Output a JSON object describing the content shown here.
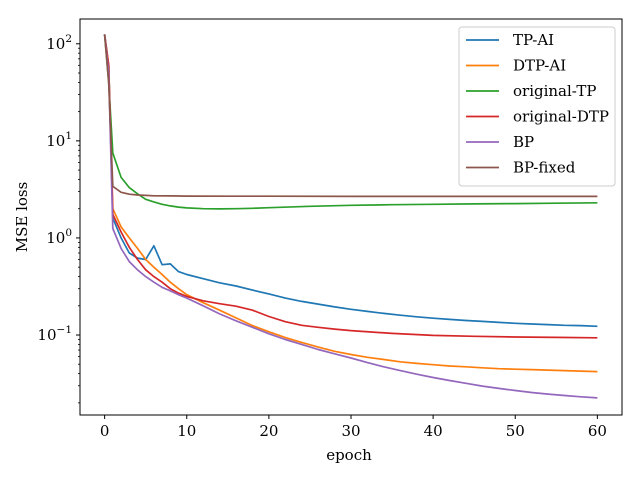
{
  "chart_data": {
    "type": "line",
    "xlabel": "epoch",
    "ylabel": "MSE loss",
    "yscale": "log",
    "xlim": [
      -3,
      63
    ],
    "ylim": [
      0.015,
      180
    ],
    "xticks": [
      0,
      10,
      20,
      30,
      40,
      50,
      60
    ],
    "yticks": [
      {
        "value": 100,
        "base": "10",
        "exp": "2"
      },
      {
        "value": 10,
        "base": "10",
        "exp": "1"
      },
      {
        "value": 1,
        "base": "10",
        "exp": "0"
      },
      {
        "value": 0.1,
        "base": "10",
        "exp": "−1"
      }
    ],
    "grid": false,
    "legend_position": "top-right",
    "series": [
      {
        "name": "TP-AI",
        "color": "#1f77b4",
        "x": [
          0,
          0.5,
          1,
          2,
          3,
          4,
          5,
          6,
          7,
          8,
          9,
          10,
          12,
          14,
          16,
          18,
          20,
          22,
          24,
          26,
          28,
          30,
          32,
          34,
          36,
          38,
          40,
          42,
          44,
          46,
          48,
          50,
          52,
          54,
          56,
          58,
          60
        ],
        "y": [
          125,
          60,
          1.6,
          1.0,
          0.7,
          0.62,
          0.6,
          0.83,
          0.53,
          0.54,
          0.45,
          0.42,
          0.38,
          0.345,
          0.32,
          0.29,
          0.265,
          0.24,
          0.222,
          0.208,
          0.195,
          0.184,
          0.175,
          0.167,
          0.16,
          0.154,
          0.149,
          0.145,
          0.141,
          0.138,
          0.135,
          0.132,
          0.13,
          0.128,
          0.126,
          0.125,
          0.123
        ]
      },
      {
        "name": "DTP-AI",
        "color": "#ff7f0e",
        "x": [
          0,
          0.5,
          1,
          2,
          3,
          4,
          5,
          6,
          7,
          8,
          9,
          10,
          12,
          14,
          16,
          18,
          20,
          22,
          24,
          26,
          28,
          30,
          32,
          34,
          36,
          38,
          40,
          42,
          44,
          46,
          48,
          50,
          52,
          54,
          56,
          58,
          60
        ],
        "y": [
          125,
          60,
          2.0,
          1.3,
          1.0,
          0.78,
          0.6,
          0.5,
          0.42,
          0.35,
          0.3,
          0.26,
          0.215,
          0.18,
          0.15,
          0.125,
          0.108,
          0.094,
          0.084,
          0.075,
          0.068,
          0.063,
          0.059,
          0.056,
          0.053,
          0.051,
          0.0495,
          0.048,
          0.047,
          0.046,
          0.045,
          0.0445,
          0.044,
          0.0435,
          0.043,
          0.0425,
          0.042
        ]
      },
      {
        "name": "original-TP",
        "color": "#2ca02c",
        "x": [
          0,
          0.5,
          1,
          2,
          3,
          4,
          5,
          6,
          7,
          8,
          9,
          10,
          12,
          14,
          16,
          18,
          20,
          25,
          30,
          35,
          40,
          45,
          50,
          55,
          60
        ],
        "y": [
          125,
          40,
          7.5,
          4.2,
          3.3,
          2.85,
          2.5,
          2.35,
          2.22,
          2.14,
          2.08,
          2.04,
          2.0,
          1.99,
          2.0,
          2.02,
          2.05,
          2.12,
          2.17,
          2.2,
          2.22,
          2.24,
          2.26,
          2.28,
          2.3
        ]
      },
      {
        "name": "original-DTP",
        "color": "#d62728",
        "x": [
          0,
          0.5,
          1,
          2,
          3,
          4,
          5,
          6,
          7,
          8,
          9,
          10,
          12,
          14,
          16,
          18,
          20,
          22,
          24,
          26,
          28,
          30,
          35,
          40,
          45,
          50,
          55,
          60
        ],
        "y": [
          125,
          60,
          1.75,
          1.15,
          0.8,
          0.6,
          0.47,
          0.4,
          0.35,
          0.3,
          0.27,
          0.25,
          0.225,
          0.21,
          0.198,
          0.18,
          0.155,
          0.137,
          0.126,
          0.12,
          0.115,
          0.111,
          0.104,
          0.099,
          0.097,
          0.0955,
          0.0945,
          0.0935
        ]
      },
      {
        "name": "BP",
        "color": "#9467bd",
        "x": [
          0,
          0.5,
          1,
          2,
          3,
          4,
          5,
          6,
          7,
          8,
          9,
          10,
          12,
          14,
          16,
          18,
          20,
          22,
          24,
          26,
          28,
          30,
          32,
          34,
          36,
          38,
          40,
          42,
          44,
          46,
          48,
          50,
          52,
          54,
          56,
          58,
          60
        ],
        "y": [
          125,
          50,
          1.25,
          0.78,
          0.57,
          0.47,
          0.4,
          0.35,
          0.31,
          0.285,
          0.26,
          0.24,
          0.2,
          0.165,
          0.14,
          0.12,
          0.103,
          0.09,
          0.08,
          0.071,
          0.064,
          0.058,
          0.052,
          0.047,
          0.043,
          0.0395,
          0.0365,
          0.034,
          0.0318,
          0.0298,
          0.0282,
          0.0268,
          0.0256,
          0.0246,
          0.0238,
          0.0231,
          0.0225
        ]
      },
      {
        "name": "BP-fixed",
        "color": "#8c564b",
        "x": [
          0,
          0.5,
          1,
          2,
          3,
          4,
          5,
          6,
          8,
          10,
          15,
          20,
          30,
          40,
          50,
          60
        ],
        "y": [
          125,
          40,
          3.4,
          2.95,
          2.82,
          2.77,
          2.74,
          2.72,
          2.71,
          2.7,
          2.69,
          2.69,
          2.68,
          2.68,
          2.68,
          2.68
        ]
      }
    ]
  }
}
